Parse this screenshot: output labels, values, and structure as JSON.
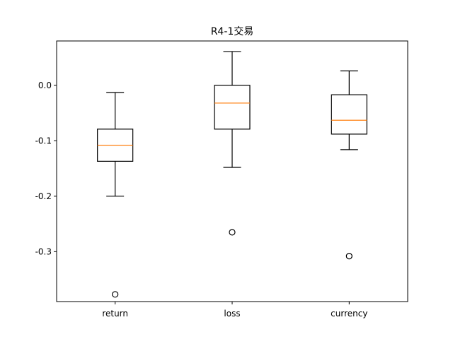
{
  "chart_data": {
    "type": "box",
    "title": "R4-1交易",
    "xlabel": "",
    "ylabel": "",
    "ylim": [
      -0.39,
      0.08
    ],
    "yticks": [
      0.0,
      -0.1,
      -0.2,
      -0.3
    ],
    "ytick_labels": [
      "0.0",
      "-0.1",
      "-0.2",
      "-0.3"
    ],
    "grid": false,
    "colors": {
      "box": "#000000",
      "median": "#ff7f0e",
      "background": "#ffffff"
    },
    "series": [
      {
        "name": "return",
        "whisker_low": -0.2,
        "q1": -0.137,
        "median": -0.108,
        "q3": -0.079,
        "whisker_high": -0.013,
        "outliers": [
          -0.377
        ]
      },
      {
        "name": "loss",
        "whisker_low": -0.148,
        "q1": -0.079,
        "median": -0.032,
        "q3": 0.0,
        "whisker_high": 0.061,
        "outliers": [
          -0.265
        ]
      },
      {
        "name": "currency",
        "whisker_low": -0.116,
        "q1": -0.088,
        "median": -0.063,
        "q3": -0.017,
        "whisker_high": 0.026,
        "outliers": [
          -0.308
        ]
      }
    ]
  }
}
